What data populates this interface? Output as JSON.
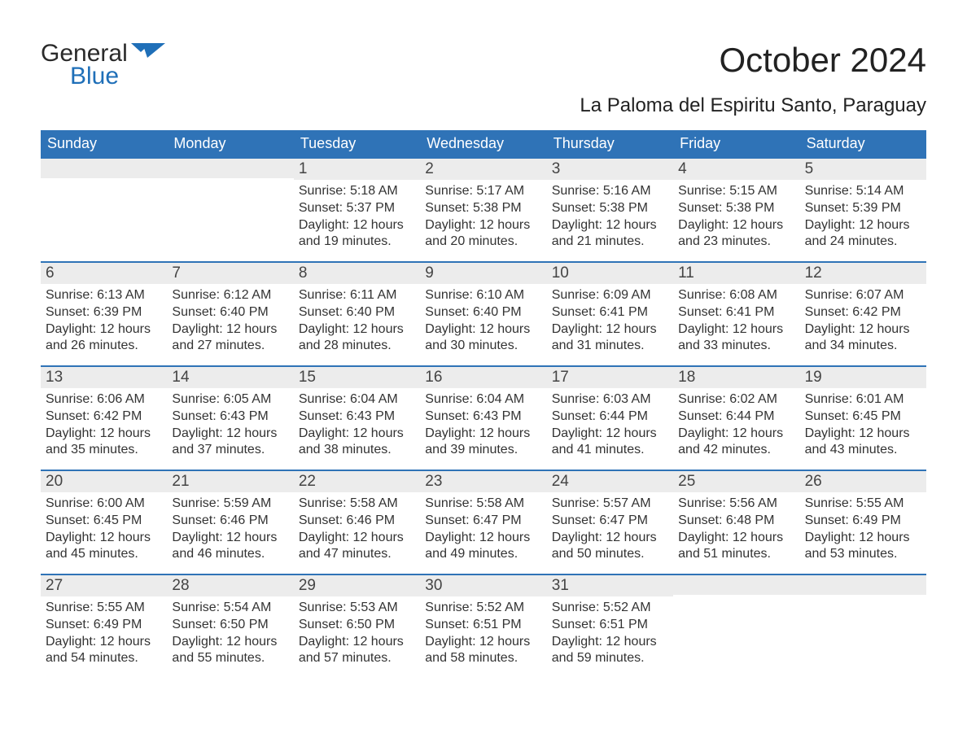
{
  "brand": {
    "word1": "General",
    "word2": "Blue",
    "text_color": "#2a2a2a",
    "accent_color": "#1f6fb8"
  },
  "header": {
    "month_year": "October 2024",
    "location": "La Paloma del Espiritu Santo, Paraguay"
  },
  "colors": {
    "header_bg": "#2f73b7",
    "header_text": "#ffffff",
    "row_separator": "#2f73b7",
    "daynum_bg": "#ececec",
    "body_text": "#333333",
    "page_bg": "#ffffff"
  },
  "typography": {
    "month_year_fontsize": 42,
    "location_fontsize": 24,
    "weekday_fontsize": 18,
    "daynum_fontsize": 19,
    "body_fontsize": 16,
    "logo_fontsize": 30
  },
  "weekdays": [
    "Sunday",
    "Monday",
    "Tuesday",
    "Wednesday",
    "Thursday",
    "Friday",
    "Saturday"
  ],
  "weeks": [
    [
      null,
      null,
      {
        "n": "1",
        "sunrise": "Sunrise: 5:18 AM",
        "sunset": "Sunset: 5:37 PM",
        "dl1": "Daylight: 12 hours",
        "dl2": "and 19 minutes."
      },
      {
        "n": "2",
        "sunrise": "Sunrise: 5:17 AM",
        "sunset": "Sunset: 5:38 PM",
        "dl1": "Daylight: 12 hours",
        "dl2": "and 20 minutes."
      },
      {
        "n": "3",
        "sunrise": "Sunrise: 5:16 AM",
        "sunset": "Sunset: 5:38 PM",
        "dl1": "Daylight: 12 hours",
        "dl2": "and 21 minutes."
      },
      {
        "n": "4",
        "sunrise": "Sunrise: 5:15 AM",
        "sunset": "Sunset: 5:38 PM",
        "dl1": "Daylight: 12 hours",
        "dl2": "and 23 minutes."
      },
      {
        "n": "5",
        "sunrise": "Sunrise: 5:14 AM",
        "sunset": "Sunset: 5:39 PM",
        "dl1": "Daylight: 12 hours",
        "dl2": "and 24 minutes."
      }
    ],
    [
      {
        "n": "6",
        "sunrise": "Sunrise: 6:13 AM",
        "sunset": "Sunset: 6:39 PM",
        "dl1": "Daylight: 12 hours",
        "dl2": "and 26 minutes."
      },
      {
        "n": "7",
        "sunrise": "Sunrise: 6:12 AM",
        "sunset": "Sunset: 6:40 PM",
        "dl1": "Daylight: 12 hours",
        "dl2": "and 27 minutes."
      },
      {
        "n": "8",
        "sunrise": "Sunrise: 6:11 AM",
        "sunset": "Sunset: 6:40 PM",
        "dl1": "Daylight: 12 hours",
        "dl2": "and 28 minutes."
      },
      {
        "n": "9",
        "sunrise": "Sunrise: 6:10 AM",
        "sunset": "Sunset: 6:40 PM",
        "dl1": "Daylight: 12 hours",
        "dl2": "and 30 minutes."
      },
      {
        "n": "10",
        "sunrise": "Sunrise: 6:09 AM",
        "sunset": "Sunset: 6:41 PM",
        "dl1": "Daylight: 12 hours",
        "dl2": "and 31 minutes."
      },
      {
        "n": "11",
        "sunrise": "Sunrise: 6:08 AM",
        "sunset": "Sunset: 6:41 PM",
        "dl1": "Daylight: 12 hours",
        "dl2": "and 33 minutes."
      },
      {
        "n": "12",
        "sunrise": "Sunrise: 6:07 AM",
        "sunset": "Sunset: 6:42 PM",
        "dl1": "Daylight: 12 hours",
        "dl2": "and 34 minutes."
      }
    ],
    [
      {
        "n": "13",
        "sunrise": "Sunrise: 6:06 AM",
        "sunset": "Sunset: 6:42 PM",
        "dl1": "Daylight: 12 hours",
        "dl2": "and 35 minutes."
      },
      {
        "n": "14",
        "sunrise": "Sunrise: 6:05 AM",
        "sunset": "Sunset: 6:43 PM",
        "dl1": "Daylight: 12 hours",
        "dl2": "and 37 minutes."
      },
      {
        "n": "15",
        "sunrise": "Sunrise: 6:04 AM",
        "sunset": "Sunset: 6:43 PM",
        "dl1": "Daylight: 12 hours",
        "dl2": "and 38 minutes."
      },
      {
        "n": "16",
        "sunrise": "Sunrise: 6:04 AM",
        "sunset": "Sunset: 6:43 PM",
        "dl1": "Daylight: 12 hours",
        "dl2": "and 39 minutes."
      },
      {
        "n": "17",
        "sunrise": "Sunrise: 6:03 AM",
        "sunset": "Sunset: 6:44 PM",
        "dl1": "Daylight: 12 hours",
        "dl2": "and 41 minutes."
      },
      {
        "n": "18",
        "sunrise": "Sunrise: 6:02 AM",
        "sunset": "Sunset: 6:44 PM",
        "dl1": "Daylight: 12 hours",
        "dl2": "and 42 minutes."
      },
      {
        "n": "19",
        "sunrise": "Sunrise: 6:01 AM",
        "sunset": "Sunset: 6:45 PM",
        "dl1": "Daylight: 12 hours",
        "dl2": "and 43 minutes."
      }
    ],
    [
      {
        "n": "20",
        "sunrise": "Sunrise: 6:00 AM",
        "sunset": "Sunset: 6:45 PM",
        "dl1": "Daylight: 12 hours",
        "dl2": "and 45 minutes."
      },
      {
        "n": "21",
        "sunrise": "Sunrise: 5:59 AM",
        "sunset": "Sunset: 6:46 PM",
        "dl1": "Daylight: 12 hours",
        "dl2": "and 46 minutes."
      },
      {
        "n": "22",
        "sunrise": "Sunrise: 5:58 AM",
        "sunset": "Sunset: 6:46 PM",
        "dl1": "Daylight: 12 hours",
        "dl2": "and 47 minutes."
      },
      {
        "n": "23",
        "sunrise": "Sunrise: 5:58 AM",
        "sunset": "Sunset: 6:47 PM",
        "dl1": "Daylight: 12 hours",
        "dl2": "and 49 minutes."
      },
      {
        "n": "24",
        "sunrise": "Sunrise: 5:57 AM",
        "sunset": "Sunset: 6:47 PM",
        "dl1": "Daylight: 12 hours",
        "dl2": "and 50 minutes."
      },
      {
        "n": "25",
        "sunrise": "Sunrise: 5:56 AM",
        "sunset": "Sunset: 6:48 PM",
        "dl1": "Daylight: 12 hours",
        "dl2": "and 51 minutes."
      },
      {
        "n": "26",
        "sunrise": "Sunrise: 5:55 AM",
        "sunset": "Sunset: 6:49 PM",
        "dl1": "Daylight: 12 hours",
        "dl2": "and 53 minutes."
      }
    ],
    [
      {
        "n": "27",
        "sunrise": "Sunrise: 5:55 AM",
        "sunset": "Sunset: 6:49 PM",
        "dl1": "Daylight: 12 hours",
        "dl2": "and 54 minutes."
      },
      {
        "n": "28",
        "sunrise": "Sunrise: 5:54 AM",
        "sunset": "Sunset: 6:50 PM",
        "dl1": "Daylight: 12 hours",
        "dl2": "and 55 minutes."
      },
      {
        "n": "29",
        "sunrise": "Sunrise: 5:53 AM",
        "sunset": "Sunset: 6:50 PM",
        "dl1": "Daylight: 12 hours",
        "dl2": "and 57 minutes."
      },
      {
        "n": "30",
        "sunrise": "Sunrise: 5:52 AM",
        "sunset": "Sunset: 6:51 PM",
        "dl1": "Daylight: 12 hours",
        "dl2": "and 58 minutes."
      },
      {
        "n": "31",
        "sunrise": "Sunrise: 5:52 AM",
        "sunset": "Sunset: 6:51 PM",
        "dl1": "Daylight: 12 hours",
        "dl2": "and 59 minutes."
      },
      null,
      null
    ]
  ]
}
